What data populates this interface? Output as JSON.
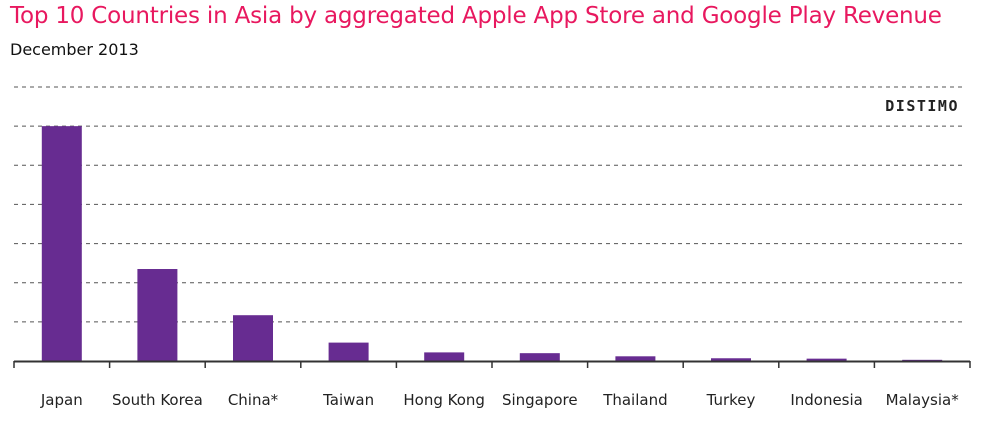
{
  "chart_data": {
    "type": "bar",
    "title": "Top 10 Countries in Asia by aggregated Apple App Store and Google Play Revenue",
    "subtitle": "December 2013",
    "xlabel": "",
    "ylabel": "",
    "categories": [
      "Japan",
      "South Korea",
      "China*",
      "Taiwan",
      "Hong Kong",
      "Singapore",
      "Thailand",
      "Turkey",
      "Indonesia",
      "Malaysia*"
    ],
    "values": [
      60,
      23.5,
      11.7,
      4.7,
      2.2,
      2.0,
      1.2,
      0.7,
      0.6,
      0.3
    ],
    "ylim": [
      0,
      70
    ],
    "grid": true,
    "y_tick_labels_visible": false,
    "bar_color": "#672c91",
    "title_color": "#e8185f",
    "brand": "DISTIMO"
  }
}
